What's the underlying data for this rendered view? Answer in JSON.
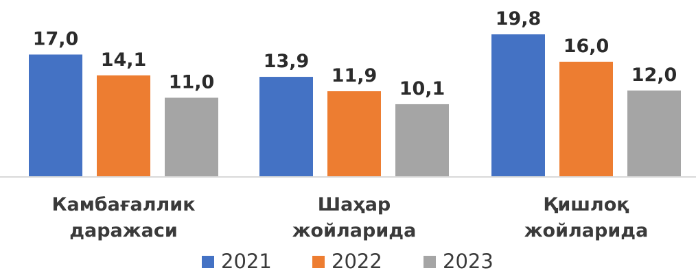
{
  "chart_data": {
    "type": "bar",
    "categories": [
      [
        "Камбағаллик",
        "даражаси"
      ],
      [
        "Шаҳар",
        "жойларида"
      ],
      [
        "Қишлоқ",
        "жойларида"
      ]
    ],
    "series": [
      {
        "name": "2021",
        "color": "#4472C4",
        "values": [
          17.0,
          13.9,
          19.8
        ],
        "labels": [
          "17,0",
          "13,9",
          "19,8"
        ]
      },
      {
        "name": "2022",
        "color": "#ED7D31",
        "values": [
          14.1,
          11.9,
          16.0
        ],
        "labels": [
          "14,1",
          "11,9",
          "16,0"
        ]
      },
      {
        "name": "2023",
        "color": "#A5A5A5",
        "values": [
          11.0,
          10.1,
          12.0
        ],
        "labels": [
          "11,0",
          "10,1",
          "12,0"
        ]
      }
    ],
    "ylim": [
      0,
      20
    ],
    "grid": false,
    "legend_position": "bottom"
  }
}
